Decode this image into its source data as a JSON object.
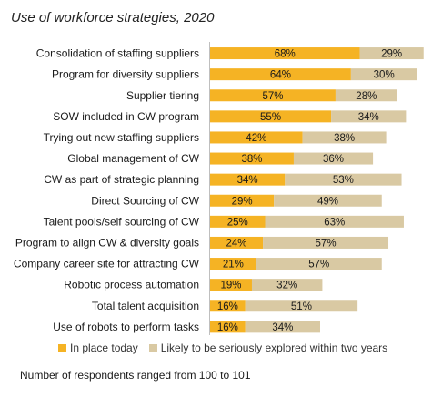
{
  "chart_data": {
    "type": "bar",
    "orientation": "horizontal",
    "stacked": true,
    "title": "Use of workforce strategies, 2020",
    "categories": [
      "Consolidation of staffing suppliers",
      "Program for diversity suppliers",
      "Supplier tiering",
      "SOW included in CW program",
      "Trying out new staffing suppliers",
      "Global management of CW",
      "CW as part of strategic planning",
      "Direct Sourcing of CW",
      "Talent pools/self sourcing of CW",
      "Program to align CW & diversity goals",
      "Company career site for attracting CW",
      "Robotic process automation",
      "Total talent acquisition",
      "Use of robots to perform tasks"
    ],
    "series": [
      {
        "name": "In place today",
        "color": "#F5B324",
        "values": [
          68,
          64,
          57,
          55,
          42,
          38,
          34,
          29,
          25,
          24,
          21,
          19,
          16,
          16
        ],
        "labels": [
          "68%",
          "64%",
          "57%",
          "55%",
          "42%",
          "38%",
          "34%",
          "29%",
          "25%",
          "24%",
          "21%",
          "19%",
          "16%",
          "16%"
        ]
      },
      {
        "name": "Likely to be seriously explored within two years",
        "color": "#D9C9A3",
        "values": [
          29,
          30,
          28,
          34,
          38,
          36,
          53,
          49,
          63,
          57,
          57,
          32,
          51,
          34
        ],
        "labels": [
          "29%",
          "30%",
          "28%",
          "34%",
          "38%",
          "36%",
          "53%",
          "49%",
          "63%",
          "57%",
          "57%",
          "32%",
          "51%",
          "34%"
        ]
      }
    ],
    "xlim": [
      0,
      100
    ],
    "grid": false,
    "legend_position": "bottom"
  },
  "note": "Number of respondents ranged from 100 to 101"
}
